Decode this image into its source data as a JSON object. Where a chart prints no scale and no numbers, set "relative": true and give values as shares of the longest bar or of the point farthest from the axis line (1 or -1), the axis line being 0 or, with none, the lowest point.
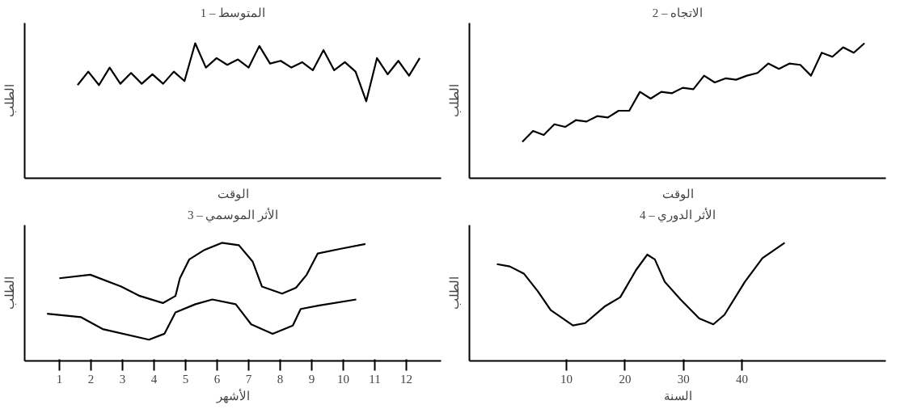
{
  "chart_data": [
    {
      "type": "line",
      "title": "1 – المتوسط",
      "xlabel": "الوقت",
      "ylabel": "الطلب",
      "relative": true,
      "tick_labels": false,
      "grid": false,
      "categories": [
        null,
        null,
        null,
        null,
        null,
        null,
        null,
        null,
        null,
        null,
        null,
        null,
        null,
        null,
        null,
        null,
        null,
        null,
        null,
        null,
        null,
        null,
        null,
        null,
        null,
        null,
        null,
        null,
        null,
        null,
        null,
        null,
        null
      ],
      "series": [
        {
          "color": "#000000",
          "values": [
            0.69,
            0.79,
            0.69,
            0.82,
            0.7,
            0.78,
            0.7,
            0.77,
            0.7,
            0.79,
            0.72,
            1.0,
            0.82,
            0.89,
            0.84,
            0.88,
            0.82,
            0.98,
            0.85,
            0.87,
            0.82,
            0.86,
            0.8,
            0.95,
            0.8,
            0.86,
            0.79,
            0.57,
            0.89,
            0.77,
            0.87,
            0.76,
            0.89
          ]
        }
      ]
    },
    {
      "type": "line",
      "title": "2 – الاتجاه",
      "xlabel": "الوقت",
      "ylabel": "الطلب",
      "relative": true,
      "tick_labels": false,
      "grid": false,
      "categories": [
        null,
        null,
        null,
        null,
        null,
        null,
        null,
        null,
        null,
        null,
        null,
        null,
        null,
        null,
        null,
        null,
        null,
        null,
        null,
        null,
        null,
        null,
        null,
        null,
        null,
        null,
        null,
        null,
        null,
        null,
        null,
        null,
        null
      ],
      "series": [
        {
          "color": "#000000",
          "values": [
            0.27,
            0.35,
            0.32,
            0.4,
            0.38,
            0.43,
            0.42,
            0.46,
            0.45,
            0.5,
            0.5,
            0.64,
            0.59,
            0.64,
            0.63,
            0.67,
            0.66,
            0.76,
            0.71,
            0.74,
            0.73,
            0.76,
            0.78,
            0.85,
            0.81,
            0.85,
            0.84,
            0.76,
            0.93,
            0.9,
            0.97,
            0.93,
            1.0
          ]
        }
      ]
    },
    {
      "type": "line",
      "title": "3 – الأثر الموسمي",
      "xlabel": "الأشهر",
      "ylabel": "الطلب",
      "relative": true,
      "tick_labels": "x",
      "grid": false,
      "xlim": [
        -0.1,
        13.1
      ],
      "xticks": [
        1,
        2,
        3,
        4,
        5,
        6,
        7,
        8,
        9,
        10,
        11,
        12
      ],
      "series": [
        {
          "color": "#000000",
          "x": [
            1.0,
            1.98,
            2.96,
            3.55,
            4.28,
            4.68,
            4.82,
            5.12,
            5.6,
            6.15,
            6.69,
            7.13,
            7.42,
            8.06,
            8.5,
            8.84,
            9.19,
            9.92,
            10.7
          ],
          "values": [
            0.7,
            0.73,
            0.63,
            0.55,
            0.49,
            0.55,
            0.7,
            0.86,
            0.94,
            1.0,
            0.98,
            0.84,
            0.63,
            0.57,
            0.62,
            0.73,
            0.91,
            0.95,
            0.99
          ]
        },
        {
          "color": "#000000",
          "x": [
            0.61,
            1.69,
            2.37,
            3.84,
            4.33,
            4.68,
            5.31,
            5.85,
            6.59,
            7.08,
            7.76,
            8.4,
            8.65,
            9.24,
            10.41
          ],
          "values": [
            0.4,
            0.37,
            0.27,
            0.18,
            0.23,
            0.41,
            0.48,
            0.52,
            0.48,
            0.31,
            0.23,
            0.3,
            0.44,
            0.47,
            0.52
          ]
        }
      ]
    },
    {
      "type": "line",
      "title": "4 – الأثر الدوري",
      "xlabel": "السنة",
      "ylabel": "الطلب",
      "relative": true,
      "tick_labels": "x",
      "grid": false,
      "xlim": [
        -6.6,
        64.6
      ],
      "xticks": [
        10,
        20,
        30,
        40
      ],
      "series": [
        {
          "color": "#000000",
          "x": [
            -1.9,
            0.3,
            2.7,
            5.1,
            7.3,
            11.1,
            13.2,
            16.5,
            19.2,
            21.9,
            23.8,
            25.1,
            26.8,
            29.5,
            32.7,
            35.1,
            37.0,
            40.5,
            43.5,
            47.3
          ],
          "values": [
            0.82,
            0.8,
            0.74,
            0.59,
            0.43,
            0.3,
            0.32,
            0.46,
            0.54,
            0.77,
            0.9,
            0.86,
            0.67,
            0.52,
            0.36,
            0.31,
            0.39,
            0.67,
            0.87,
            1.0
          ]
        }
      ]
    }
  ]
}
